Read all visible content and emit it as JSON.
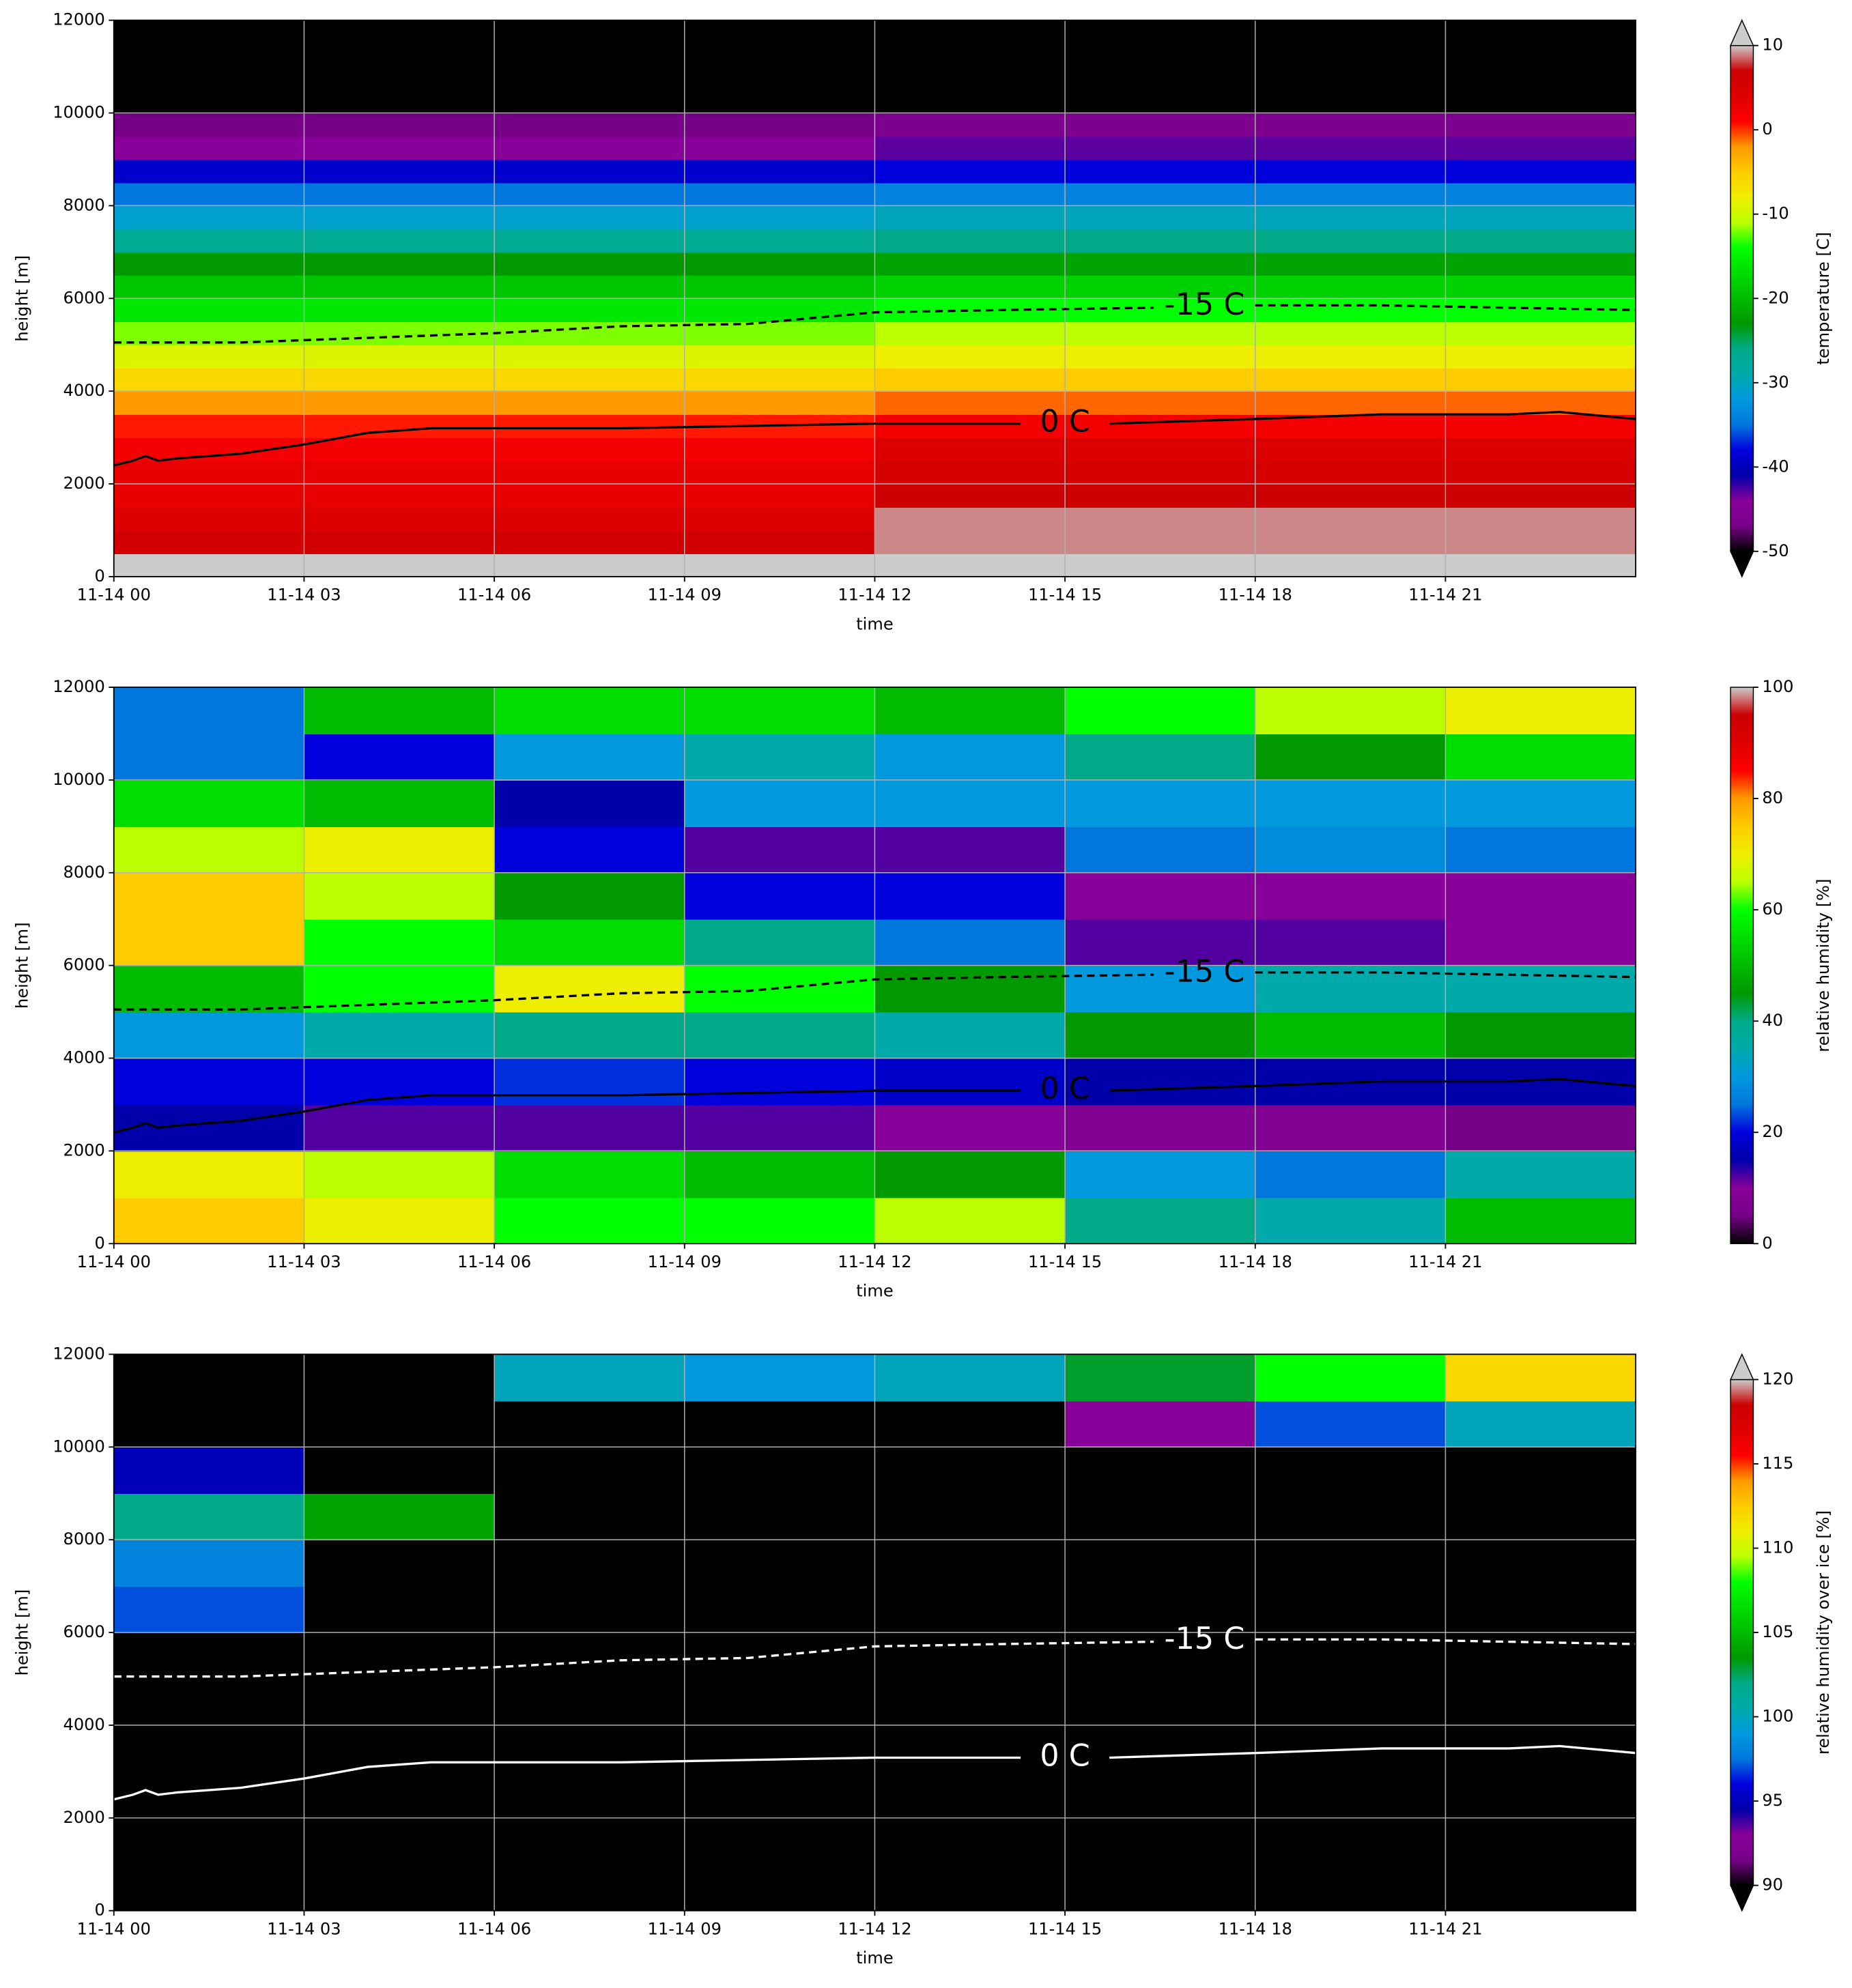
{
  "chart_data": [
    {
      "type": "heatmap",
      "cmap": "nipy_spectral",
      "xlabel": "time",
      "ylabel": "height [m]",
      "clabel": "temperature [C]",
      "xlim": [
        0,
        24
      ],
      "ylim": [
        0,
        12000
      ],
      "grid": true,
      "extend": "both",
      "clim": [
        -50,
        10
      ],
      "xticks": [
        {
          "value": 0,
          "label": "11-14 00"
        },
        {
          "value": 3,
          "label": "11-14 03"
        },
        {
          "value": 6,
          "label": "11-14 06"
        },
        {
          "value": 9,
          "label": "11-14 09"
        },
        {
          "value": 12,
          "label": "11-14 12"
        },
        {
          "value": 15,
          "label": "11-14 15"
        },
        {
          "value": 18,
          "label": "11-14 18"
        },
        {
          "value": 21,
          "label": "11-14 21"
        }
      ],
      "yticks": [
        0,
        2000,
        4000,
        6000,
        8000,
        10000,
        12000
      ],
      "cticks": [
        10,
        0,
        -10,
        -20,
        -30,
        -40,
        -50
      ],
      "x_bins": [
        0,
        12,
        24
      ],
      "y_bins": [
        0,
        500,
        1000,
        1500,
        2000,
        2500,
        3000,
        3500,
        4000,
        4500,
        5000,
        5500,
        6000,
        6500,
        7000,
        7500,
        8000,
        8500,
        9000,
        9500,
        10000,
        10500,
        11000,
        11500,
        12000
      ],
      "z": [
        [
          11,
          12
        ],
        [
          6,
          9
        ],
        [
          4,
          9
        ],
        [
          3,
          7
        ],
        [
          3,
          5
        ],
        [
          2,
          4
        ],
        [
          0.5,
          2
        ],
        [
          -2,
          -1
        ],
        [
          -6,
          -5
        ],
        [
          -9,
          -8
        ],
        [
          -12,
          -11
        ],
        [
          -16,
          -14
        ],
        [
          -19,
          -18
        ],
        [
          -23,
          -22
        ],
        [
          -27,
          -26
        ],
        [
          -31,
          -30
        ],
        [
          -35,
          -34
        ],
        [
          -39,
          -38
        ],
        [
          -44,
          -43
        ],
        [
          -47,
          -46
        ],
        [
          -55,
          -55
        ],
        [
          -55,
          -55
        ],
        [
          -55,
          -55
        ],
        [
          -55,
          -55
        ]
      ],
      "contours": [
        {
          "name": "-15 C",
          "color": "#000000",
          "dashed": true,
          "x": [
            0,
            2,
            4,
            6,
            8,
            10,
            12,
            14,
            16.4,
            17.2,
            18,
            20,
            22,
            24
          ],
          "values": [
            5050,
            5050,
            5150,
            5250,
            5400,
            5450,
            5700,
            5750,
            5800,
            null,
            5850,
            5850,
            5800,
            5750
          ]
        },
        {
          "name": "0 C",
          "color": "#000000",
          "dashed": false,
          "x": [
            0,
            0.3,
            0.5,
            0.7,
            1,
            2,
            3,
            4,
            5,
            6,
            8,
            10,
            12,
            14.3,
            15,
            15.7,
            18,
            20,
            22,
            22.8,
            24
          ],
          "values": [
            2400,
            2500,
            2600,
            2500,
            2550,
            2650,
            2850,
            3100,
            3200,
            3200,
            3200,
            3250,
            3300,
            3300,
            null,
            3300,
            3400,
            3500,
            3500,
            3550,
            3400
          ]
        }
      ]
    },
    {
      "type": "heatmap",
      "cmap": "nipy_spectral",
      "xlabel": "time",
      "ylabel": "height [m]",
      "clabel": "relative humidity [%]",
      "xlim": [
        0,
        24
      ],
      "ylim": [
        0,
        12000
      ],
      "grid": true,
      "extend": "neither",
      "clim": [
        0,
        100
      ],
      "xticks": [
        {
          "value": 0,
          "label": "11-14 00"
        },
        {
          "value": 3,
          "label": "11-14 03"
        },
        {
          "value": 6,
          "label": "11-14 06"
        },
        {
          "value": 9,
          "label": "11-14 09"
        },
        {
          "value": 12,
          "label": "11-14 12"
        },
        {
          "value": 15,
          "label": "11-14 15"
        },
        {
          "value": 18,
          "label": "11-14 18"
        },
        {
          "value": 21,
          "label": "11-14 21"
        }
      ],
      "yticks": [
        0,
        2000,
        4000,
        6000,
        8000,
        10000,
        12000
      ],
      "cticks": [
        100,
        80,
        60,
        40,
        20,
        0
      ],
      "x_bins": [
        0,
        3,
        6,
        9,
        12,
        15,
        18,
        21,
        24
      ],
      "y_bins": [
        0,
        1000,
        2000,
        3000,
        4000,
        5000,
        6000,
        7000,
        8000,
        9000,
        10000,
        11000,
        12000
      ],
      "z": [
        [
          75,
          70,
          60,
          60,
          65,
          40,
          35,
          50
        ],
        [
          70,
          65,
          55,
          50,
          45,
          30,
          25,
          35
        ],
        [
          15,
          12,
          12,
          12,
          10,
          8,
          8,
          5
        ],
        [
          20,
          20,
          22,
          20,
          18,
          15,
          15,
          15
        ],
        [
          30,
          35,
          40,
          40,
          35,
          45,
          50,
          45
        ],
        [
          50,
          60,
          70,
          60,
          45,
          30,
          35,
          35
        ],
        [
          75,
          60,
          55,
          40,
          25,
          12,
          12,
          10
        ],
        [
          75,
          65,
          45,
          20,
          20,
          10,
          10,
          10
        ],
        [
          65,
          70,
          20,
          12,
          12,
          25,
          28,
          25
        ],
        [
          55,
          50,
          15,
          30,
          30,
          30,
          30,
          30
        ],
        [
          25,
          20,
          30,
          35,
          30,
          40,
          45,
          55
        ],
        [
          25,
          50,
          55,
          55,
          50,
          60,
          65,
          70
        ]
      ],
      "contours": [
        {
          "name": "-15 C",
          "color": "#000000",
          "dashed": true,
          "x": [
            0,
            2,
            4,
            6,
            8,
            10,
            12,
            14,
            16.4,
            17.2,
            18,
            20,
            22,
            24
          ],
          "values": [
            5050,
            5050,
            5150,
            5250,
            5400,
            5450,
            5700,
            5750,
            5800,
            null,
            5850,
            5850,
            5800,
            5750
          ]
        },
        {
          "name": "0 C",
          "color": "#000000",
          "dashed": false,
          "x": [
            0,
            0.3,
            0.5,
            0.7,
            1,
            2,
            3,
            4,
            5,
            6,
            8,
            10,
            12,
            14.3,
            15,
            15.7,
            18,
            20,
            22,
            22.8,
            24
          ],
          "values": [
            2400,
            2500,
            2600,
            2500,
            2550,
            2650,
            2850,
            3100,
            3200,
            3200,
            3200,
            3250,
            3300,
            3300,
            null,
            3300,
            3400,
            3500,
            3500,
            3550,
            3400
          ]
        }
      ]
    },
    {
      "type": "heatmap",
      "cmap": "nipy_spectral",
      "xlabel": "time",
      "ylabel": "height [m]",
      "clabel": "relative humidity over ice [%]",
      "xlim": [
        0,
        24
      ],
      "ylim": [
        0,
        12000
      ],
      "grid": true,
      "extend": "both",
      "clim": [
        90,
        120
      ],
      "xticks": [
        {
          "value": 0,
          "label": "11-14 00"
        },
        {
          "value": 3,
          "label": "11-14 03"
        },
        {
          "value": 6,
          "label": "11-14 06"
        },
        {
          "value": 9,
          "label": "11-14 09"
        },
        {
          "value": 12,
          "label": "11-14 12"
        },
        {
          "value": 15,
          "label": "11-14 15"
        },
        {
          "value": 18,
          "label": "11-14 18"
        },
        {
          "value": 21,
          "label": "11-14 21"
        }
      ],
      "yticks": [
        0,
        2000,
        4000,
        6000,
        8000,
        10000,
        12000
      ],
      "cticks": [
        120,
        115,
        110,
        105,
        100,
        95,
        90
      ],
      "x_bins": [
        0,
        3,
        6,
        9,
        12,
        15,
        18,
        21,
        24
      ],
      "y_bins": [
        0,
        1000,
        2000,
        3000,
        4000,
        5000,
        6000,
        7000,
        8000,
        9000,
        10000,
        11000,
        12000
      ],
      "z": [
        [
          80,
          80,
          80,
          80,
          80,
          80,
          80,
          80
        ],
        [
          80,
          80,
          80,
          80,
          80,
          80,
          80,
          80
        ],
        [
          80,
          80,
          80,
          80,
          80,
          80,
          80,
          80
        ],
        [
          80,
          80,
          80,
          80,
          80,
          80,
          80,
          80
        ],
        [
          80,
          80,
          80,
          80,
          80,
          80,
          80,
          80
        ],
        [
          80,
          80,
          80,
          80,
          80,
          80,
          80,
          80
        ],
        [
          97,
          80,
          80,
          80,
          80,
          80,
          80,
          80
        ],
        [
          98,
          80,
          80,
          80,
          80,
          80,
          80,
          80
        ],
        [
          102,
          104,
          80,
          80,
          80,
          80,
          80,
          80
        ],
        [
          95,
          80,
          80,
          80,
          80,
          80,
          80,
          80
        ],
        [
          80,
          80,
          80,
          80,
          80,
          93,
          97,
          100
        ],
        [
          80,
          80,
          100,
          99,
          100,
          103,
          108,
          112
        ]
      ],
      "contours": [
        {
          "name": "-15 C",
          "color": "#ffffff",
          "dashed": true,
          "x": [
            0,
            2,
            4,
            6,
            8,
            10,
            12,
            14,
            16.4,
            17.2,
            18,
            20,
            22,
            24
          ],
          "values": [
            5050,
            5050,
            5150,
            5250,
            5400,
            5450,
            5700,
            5750,
            5800,
            null,
            5850,
            5850,
            5800,
            5750
          ]
        },
        {
          "name": "0 C",
          "color": "#ffffff",
          "dashed": false,
          "x": [
            0,
            0.3,
            0.5,
            0.7,
            1,
            2,
            3,
            4,
            5,
            6,
            8,
            10,
            12,
            14.3,
            15,
            15.7,
            18,
            20,
            22,
            22.8,
            24
          ],
          "values": [
            2400,
            2500,
            2600,
            2500,
            2550,
            2650,
            2850,
            3100,
            3200,
            3200,
            3200,
            3250,
            3300,
            3300,
            null,
            3300,
            3400,
            3500,
            3500,
            3550,
            3400
          ]
        }
      ]
    }
  ]
}
